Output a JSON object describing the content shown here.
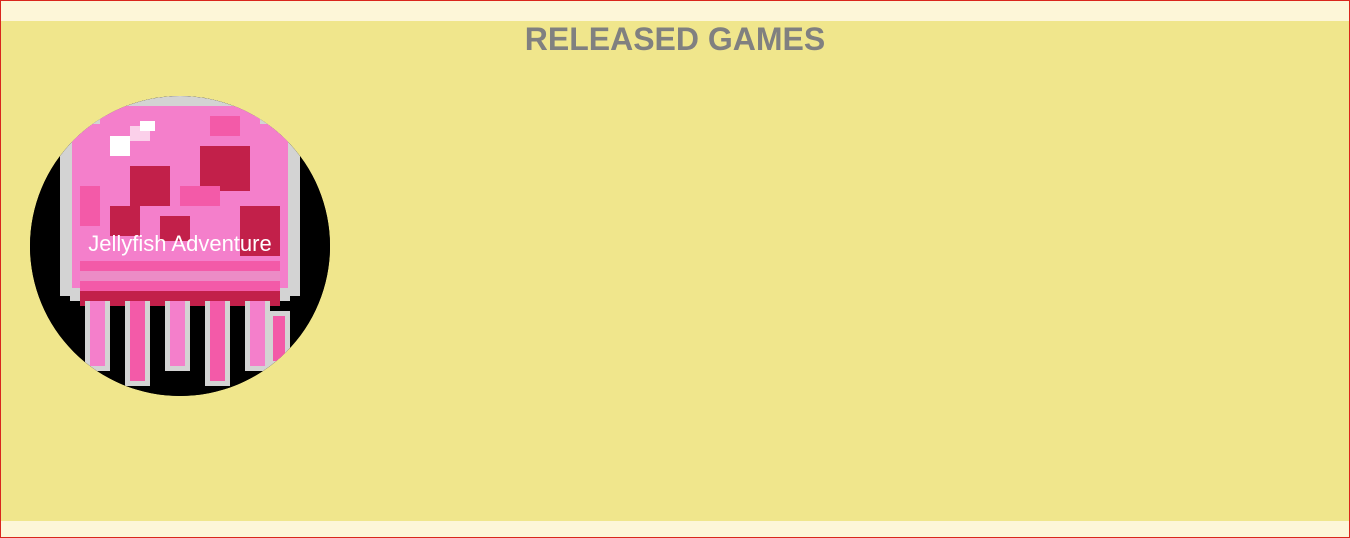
{
  "page": {
    "background": "#fdf6d8",
    "border_color": "#d9261c"
  },
  "released": {
    "title": "RELEASED GAMES",
    "background": "#f0e68c",
    "title_color": "#808080",
    "games": [
      {
        "title": "Jellyfish Adventure",
        "image_icon": "pixel-jellyfish-icon",
        "colors": {
          "background": "#000000",
          "outline": "#d3d3d3",
          "pink": "#f47fcb",
          "hot_pink": "#f35aa8",
          "crimson": "#c2204a",
          "highlight": "#ffffff"
        }
      }
    ]
  }
}
